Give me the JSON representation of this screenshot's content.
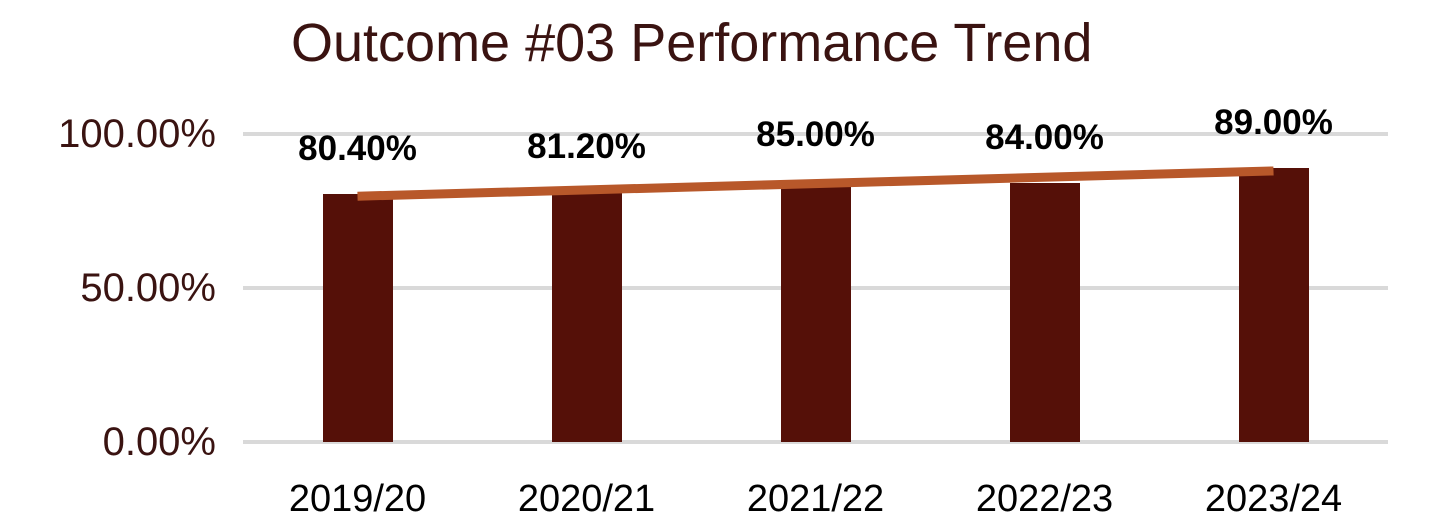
{
  "chart_data": {
    "type": "bar",
    "title": "Outcome #03 Performance Trend",
    "categories": [
      "2019/20",
      "2020/21",
      "2021/22",
      "2022/23",
      "2023/24"
    ],
    "values": [
      80.4,
      81.2,
      85.0,
      84.0,
      89.0
    ],
    "data_labels": [
      "80.40%",
      "81.20%",
      "85.00%",
      "84.00%",
      "89.00%"
    ],
    "y_ticks": [
      {
        "label": "100.00%",
        "value": 100
      },
      {
        "label": "50.00%",
        "value": 50
      },
      {
        "label": "0.00%",
        "value": 0
      }
    ],
    "ylim": [
      0,
      100
    ],
    "xlabel": "",
    "ylabel": "",
    "grid": true,
    "legend": false,
    "trendline": {
      "start_value": 79.8,
      "end_value": 88.0
    },
    "colors": {
      "bar": "#551008",
      "trendline": "#B8582A",
      "title": "#3A1311",
      "y_tick_label": "#3A1311",
      "x_tick_label": "#000000",
      "data_label": "#000000",
      "gridline": "#D9D9D9",
      "background": "#FFFFFF"
    }
  }
}
